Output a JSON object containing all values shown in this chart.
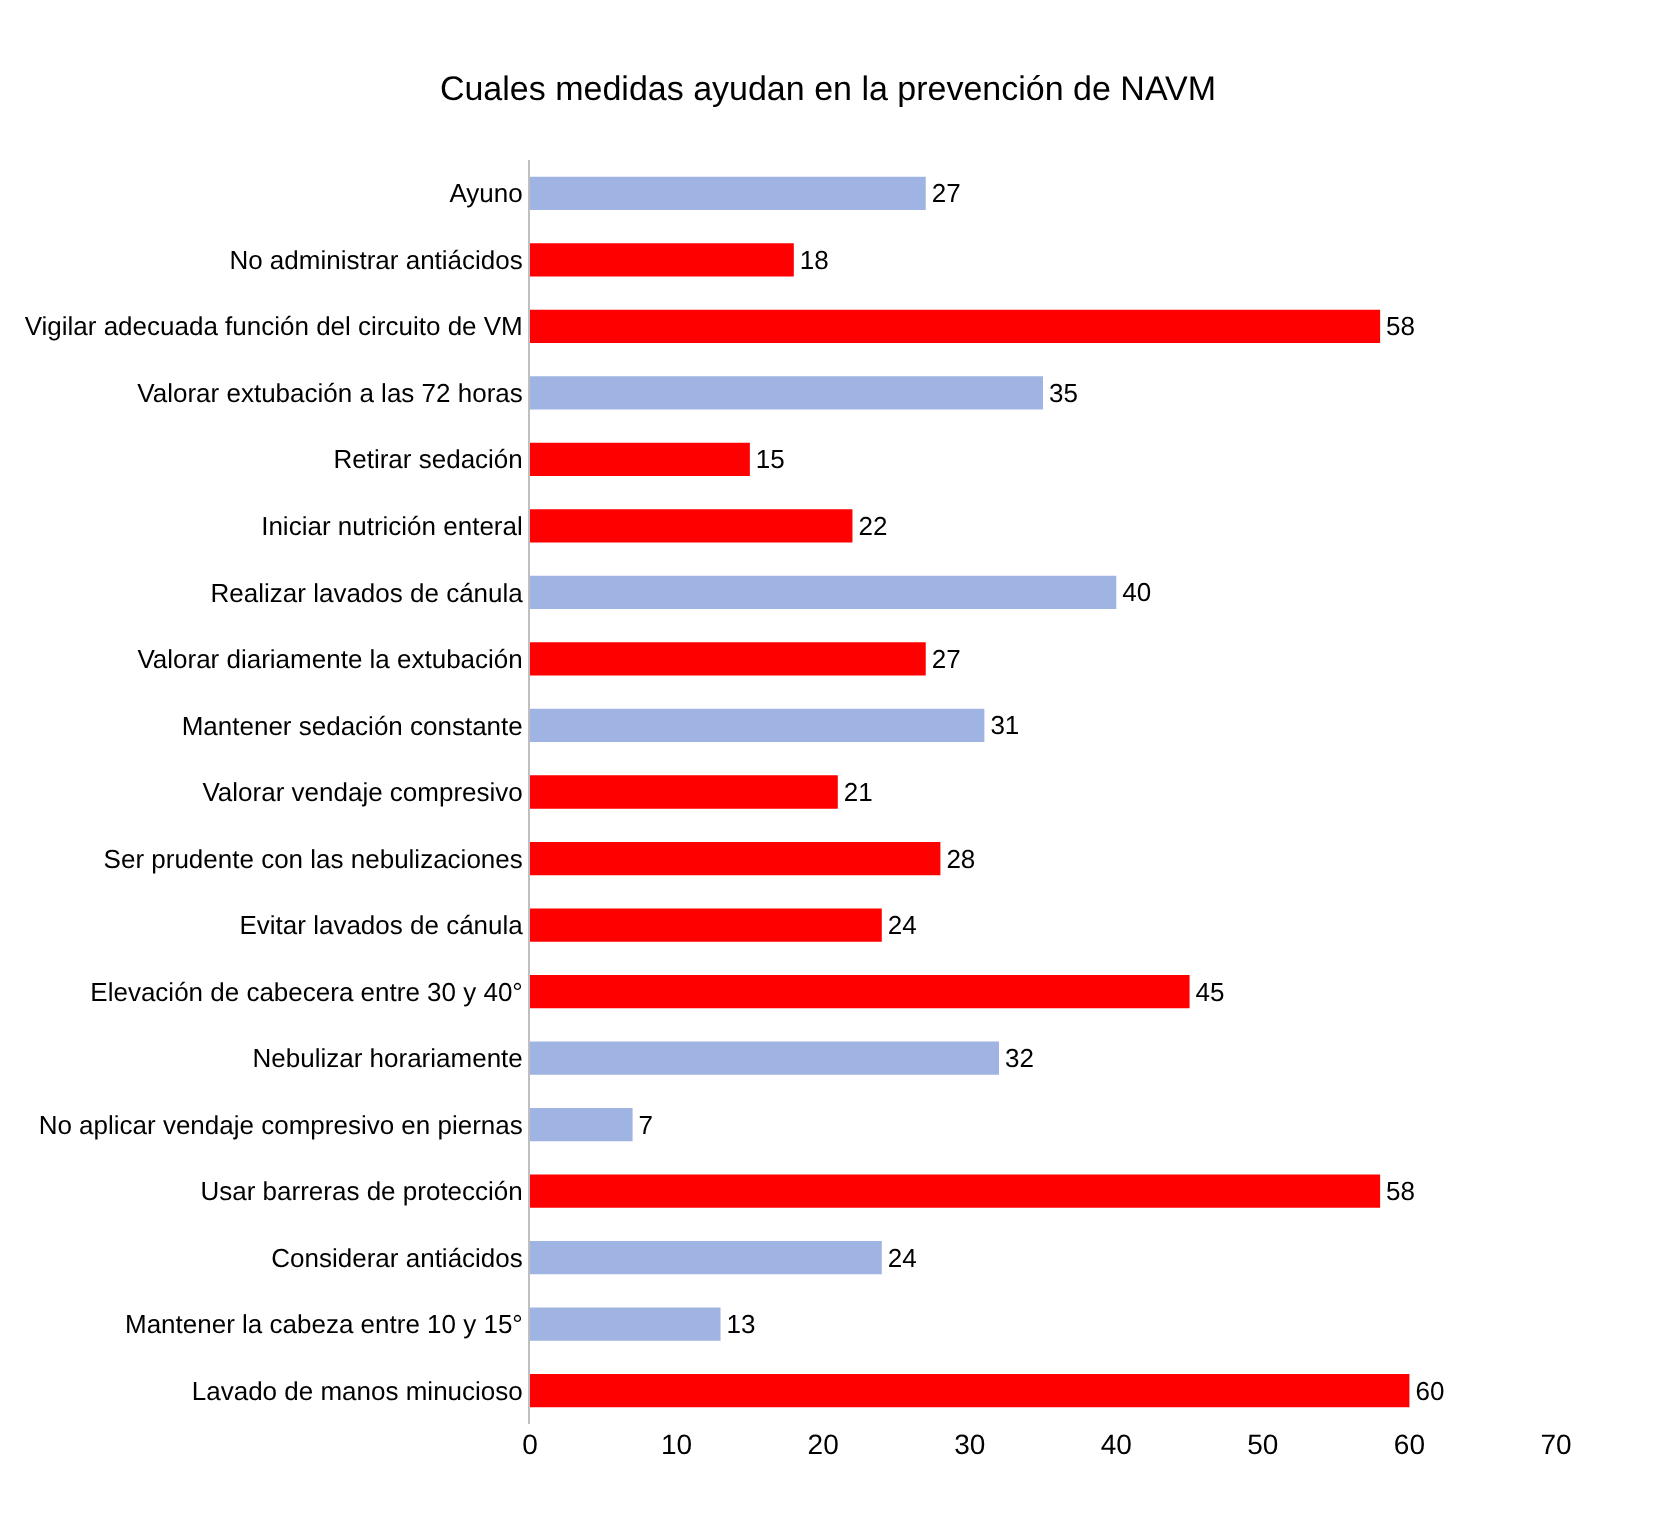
{
  "chart_data": {
    "type": "bar",
    "orientation": "horizontal",
    "title": "Cuales medidas ayudan en la prevención de NAVM",
    "categories": [
      "Ayuno",
      "No administrar antiácidos",
      "Vigilar adecuada función del circuito de VM",
      "Valorar extubación a las 72 horas",
      "Retirar sedación",
      "Iniciar nutrición enteral",
      "Realizar lavados de cánula",
      "Valorar diariamente la extubación",
      "Mantener sedación constante",
      "Valorar vendaje compresivo",
      "Ser prudente con las nebulizaciones",
      "Evitar lavados de cánula",
      "Elevación de cabecera entre 30 y 40°",
      "Nebulizar horariamente",
      "No aplicar vendaje compresivo en piernas",
      "Usar barreras de protección",
      "Considerar antiácidos",
      "Mantener la cabeza entre 10 y 15°",
      "Lavado de manos minucioso"
    ],
    "values": [
      27,
      18,
      58,
      35,
      15,
      22,
      40,
      27,
      31,
      21,
      28,
      24,
      45,
      32,
      7,
      58,
      24,
      13,
      60
    ],
    "colors": [
      "#9fb4e2",
      "#ff0000",
      "#ff0000",
      "#9fb4e2",
      "#ff0000",
      "#ff0000",
      "#9fb4e2",
      "#ff0000",
      "#9fb4e2",
      "#ff0000",
      "#ff0000",
      "#ff0000",
      "#ff0000",
      "#9fb4e2",
      "#9fb4e2",
      "#ff0000",
      "#9fb4e2",
      "#9fb4e2",
      "#ff0000"
    ],
    "xlim": [
      0,
      70
    ],
    "xticks": [
      0,
      10,
      20,
      30,
      40,
      50,
      60,
      70
    ],
    "data_labels": true,
    "grid": false
  }
}
